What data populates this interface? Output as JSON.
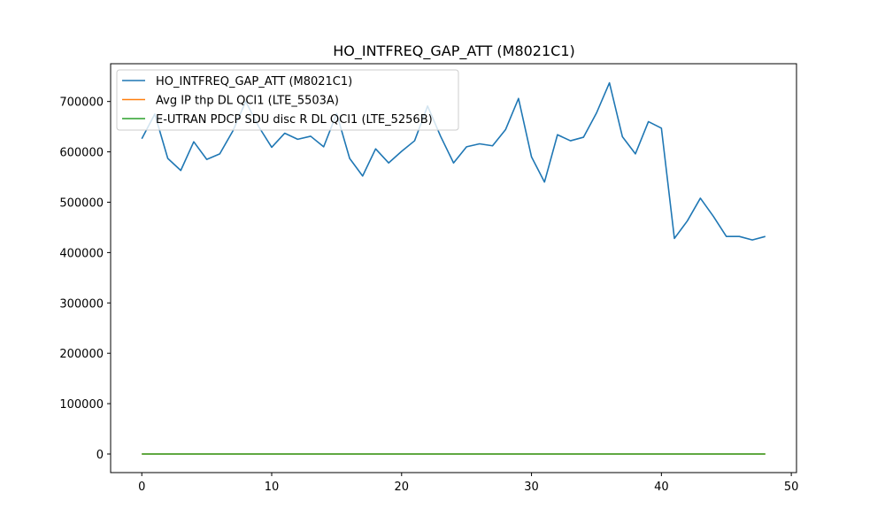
{
  "chart_data": {
    "type": "line",
    "title": "HO_INTFREQ_GAP_ATT (M8021C1)",
    "xlabel": "",
    "ylabel": "",
    "xlim": [
      -2.4,
      50.4
    ],
    "ylim": [
      -36900,
      775000
    ],
    "xticks": [
      0,
      10,
      20,
      30,
      40,
      50
    ],
    "yticks": [
      0,
      100000,
      200000,
      300000,
      400000,
      500000,
      600000,
      700000
    ],
    "grid": false,
    "legend_position": "top-left",
    "series": [
      {
        "name": "HO_INTFREQ_GAP_ATT (M8021C1)",
        "color": "#1f77b4",
        "x": [
          0,
          1,
          2,
          3,
          4,
          5,
          6,
          7,
          8,
          9,
          10,
          11,
          12,
          13,
          14,
          15,
          16,
          17,
          18,
          19,
          20,
          21,
          22,
          23,
          24,
          25,
          26,
          27,
          28,
          29,
          30,
          31,
          32,
          33,
          34,
          35,
          36,
          37,
          38,
          39,
          40,
          41,
          42,
          43,
          44,
          45,
          46,
          47,
          48
        ],
        "values": [
          626000,
          675000,
          587000,
          563000,
          620000,
          585000,
          596000,
          641000,
          700000,
          650000,
          609000,
          637000,
          625000,
          631000,
          610000,
          676000,
          587000,
          552000,
          606000,
          578000,
          601000,
          622000,
          691000,
          631000,
          578000,
          610000,
          616000,
          612000,
          644000,
          706000,
          590000,
          540000,
          634000,
          622000,
          629000,
          677000,
          737000,
          630000,
          596000,
          660000,
          647000,
          428000,
          463000,
          508000,
          472000,
          432000,
          432000,
          425000,
          432000
        ]
      },
      {
        "name": "Avg IP thp DL QCI1 (LTE_5503A)",
        "color": "#ff7f0e",
        "x": [
          0,
          48
        ],
        "values": [
          0,
          0
        ]
      },
      {
        "name": "E-UTRAN PDCP SDU disc R DL QCI1 (LTE_5256B)",
        "color": "#2ca02c",
        "x": [
          0,
          48
        ],
        "values": [
          0,
          0
        ]
      }
    ]
  }
}
